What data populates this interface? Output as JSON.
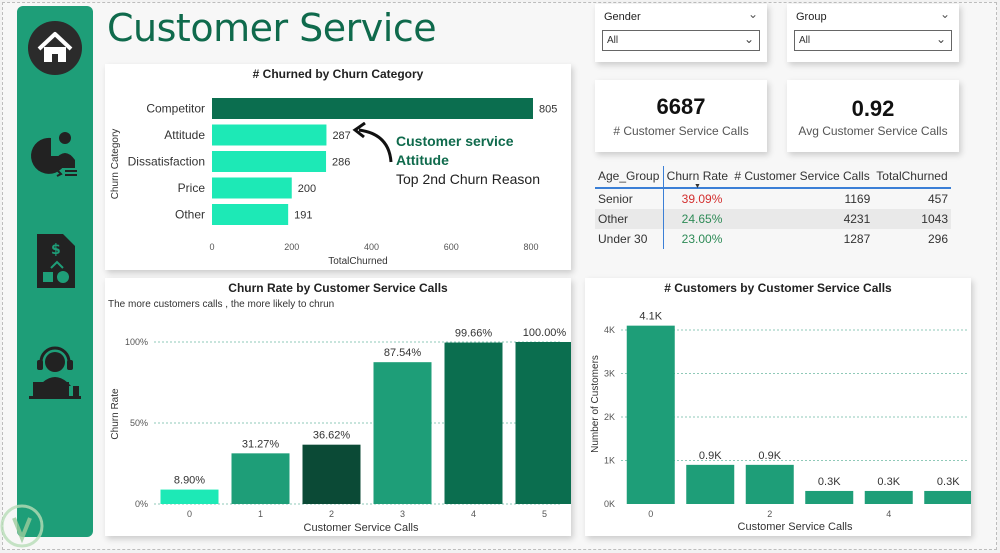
{
  "page_title": "Customer Service",
  "colors": {
    "brand": "#1e9e78",
    "title": "#0f6a4c",
    "bar_dark": "#0b6e4f",
    "bar_light": "#1de9b6",
    "red": "#d32f2f",
    "green": "#2e8b57"
  },
  "sidebar": {
    "icons": [
      "home-icon",
      "pie-chart-person-icon",
      "document-dollar-icon",
      "headset-agent-icon"
    ]
  },
  "filters": {
    "gender": {
      "label": "Gender",
      "value": "All"
    },
    "group": {
      "label": "Group",
      "value": "All"
    }
  },
  "kpis": [
    {
      "value": "6687",
      "label": "# Customer Service Calls"
    },
    {
      "value": "0.92",
      "label": "Avg Customer Service Calls"
    }
  ],
  "age_table": {
    "headers": [
      "Age_Group",
      "Churn Rate",
      "# Customer Service Calls",
      "TotalChurned"
    ],
    "rows": [
      {
        "group": "Senior",
        "churn_rate": "39.09%",
        "calls": "1169",
        "churned": "457"
      },
      {
        "group": "Other",
        "churn_rate": "24.65%",
        "calls": "4231",
        "churned": "1043"
      },
      {
        "group": "Under 30",
        "churn_rate": "23.00%",
        "calls": "1287",
        "churned": "296"
      }
    ]
  },
  "annotation": {
    "line1": "Customer service",
    "line2": "Attitude",
    "line3": "Top 2nd Churn Reason"
  },
  "chart_data": [
    {
      "type": "bar",
      "orientation": "horizontal",
      "title": "# Churned by Churn Category",
      "categories": [
        "Competitor",
        "Attitude",
        "Dissatisfaction",
        "Price",
        "Other"
      ],
      "values": [
        805,
        287,
        286,
        200,
        191
      ],
      "value_labels": [
        "805",
        "287",
        "286",
        "200",
        "191"
      ],
      "xlabel": "TotalChurned",
      "ylabel": "Churn Category",
      "xlim": [
        0,
        800
      ],
      "xticks": [
        "0",
        "200",
        "400",
        "600",
        "800"
      ]
    },
    {
      "type": "bar",
      "title": "Churn Rate by Customer Service Calls",
      "subtitle": "The more customers calls , the more likely to chrun",
      "categories": [
        "0",
        "1",
        "2",
        "3",
        "4",
        "5"
      ],
      "values": [
        8.9,
        31.27,
        36.62,
        87.54,
        99.66,
        100.0
      ],
      "value_labels": [
        "8.90%",
        "31.27%",
        "36.62%",
        "87.54%",
        "99.66%",
        "100.00%"
      ],
      "xlabel": "Customer Service Calls",
      "ylabel": "Churn Rate",
      "ylim": [
        0,
        100
      ],
      "yticks": [
        "0%",
        "50%",
        "100%"
      ]
    },
    {
      "type": "bar",
      "title": "# Customers by Customer Service Calls",
      "categories": [
        "0",
        "1",
        "2",
        "3",
        "4",
        "5"
      ],
      "x_tick_labels": [
        "0",
        "",
        "2",
        "",
        "4",
        ""
      ],
      "values": [
        4100,
        900,
        900,
        300,
        300,
        300
      ],
      "value_labels": [
        "4.1K",
        "0.9K",
        "0.9K",
        "0.3K",
        "0.3K",
        "0.3K"
      ],
      "xlabel": "Customer Service Calls",
      "ylabel": "Number of Customers",
      "ylim": [
        0,
        4000
      ],
      "yticks": [
        "0K",
        "1K",
        "2K",
        "3K",
        "4K"
      ]
    }
  ]
}
